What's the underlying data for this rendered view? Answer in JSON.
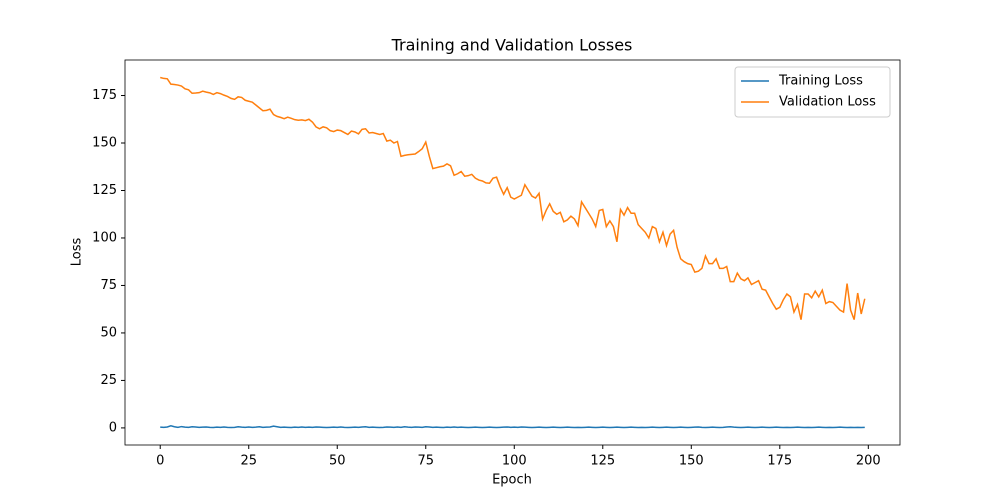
{
  "chart_data": {
    "type": "line",
    "title": "Training and Validation Losses",
    "x_label": "Epoch",
    "y_label": "Loss",
    "x": [
      0,
      1,
      2,
      3,
      4,
      5,
      6,
      7,
      8,
      9,
      10,
      11,
      12,
      13,
      14,
      15,
      16,
      17,
      18,
      19,
      20,
      21,
      22,
      23,
      24,
      25,
      26,
      27,
      28,
      29,
      30,
      31,
      32,
      33,
      34,
      35,
      36,
      37,
      38,
      39,
      40,
      41,
      42,
      43,
      44,
      45,
      46,
      47,
      48,
      49,
      50,
      51,
      52,
      53,
      54,
      55,
      56,
      57,
      58,
      59,
      60,
      61,
      62,
      63,
      64,
      65,
      66,
      67,
      68,
      69,
      70,
      71,
      72,
      73,
      74,
      75,
      76,
      77,
      78,
      79,
      80,
      81,
      82,
      83,
      84,
      85,
      86,
      87,
      88,
      89,
      90,
      91,
      92,
      93,
      94,
      95,
      96,
      97,
      98,
      99,
      100,
      101,
      102,
      103,
      104,
      105,
      106,
      107,
      108,
      109,
      110,
      111,
      112,
      113,
      114,
      115,
      116,
      117,
      118,
      119,
      120,
      121,
      122,
      123,
      124,
      125,
      126,
      127,
      128,
      129,
      130,
      131,
      132,
      133,
      134,
      135,
      136,
      137,
      138,
      139,
      140,
      141,
      142,
      143,
      144,
      145,
      146,
      147,
      148,
      149,
      150,
      151,
      152,
      153,
      154,
      155,
      156,
      157,
      158,
      159,
      160,
      161,
      162,
      163,
      164,
      165,
      166,
      167,
      168,
      169,
      170,
      171,
      172,
      173,
      174,
      175,
      176,
      177,
      178,
      179,
      180,
      181,
      182,
      183,
      184,
      185,
      186,
      187,
      188,
      189,
      190,
      191,
      192,
      193,
      194,
      195,
      196,
      197,
      198,
      199
    ],
    "series": [
      {
        "name": "Training Loss",
        "color": "#1f77b4",
        "values": [
          0.4,
          0.3,
          0.5,
          1.1,
          0.6,
          0.3,
          0.7,
          0.4,
          0.3,
          0.6,
          0.5,
          0.3,
          0.4,
          0.5,
          0.3,
          0.2,
          0.4,
          0.3,
          0.5,
          0.3,
          0.2,
          0.3,
          0.6,
          0.4,
          0.3,
          0.5,
          0.3,
          0.4,
          0.6,
          0.3,
          0.4,
          0.5,
          0.9,
          0.6,
          0.3,
          0.4,
          0.3,
          0.2,
          0.4,
          0.3,
          0.5,
          0.3,
          0.4,
          0.3,
          0.5,
          0.4,
          0.3,
          0.2,
          0.3,
          0.4,
          0.3,
          0.5,
          0.3,
          0.2,
          0.3,
          0.4,
          0.3,
          0.5,
          0.6,
          0.3,
          0.4,
          0.3,
          0.2,
          0.3,
          0.5,
          0.4,
          0.3,
          0.5,
          0.3,
          0.6,
          0.4,
          0.3,
          0.5,
          0.4,
          0.3,
          0.6,
          0.5,
          0.3,
          0.4,
          0.3,
          0.2,
          0.4,
          0.3,
          0.5,
          0.3,
          0.4,
          0.3,
          0.2,
          0.3,
          0.4,
          0.3,
          0.2,
          0.3,
          0.4,
          0.3,
          0.2,
          0.3,
          0.4,
          0.5,
          0.3,
          0.4,
          0.3,
          0.5,
          0.4,
          0.3,
          0.2,
          0.3,
          0.4,
          0.3,
          0.2,
          0.3,
          0.4,
          0.3,
          0.2,
          0.3,
          0.4,
          0.3,
          0.2,
          0.3,
          0.2,
          0.3,
          0.4,
          0.3,
          0.2,
          0.3,
          0.4,
          0.3,
          0.2,
          0.3,
          0.4,
          0.3,
          0.2,
          0.3,
          0.4,
          0.3,
          0.2,
          0.3,
          0.2,
          0.3,
          0.4,
          0.3,
          0.2,
          0.3,
          0.4,
          0.3,
          0.2,
          0.3,
          0.4,
          0.3,
          0.2,
          0.3,
          0.4,
          0.5,
          0.3,
          0.2,
          0.3,
          0.4,
          0.3,
          0.2,
          0.3,
          0.5,
          0.6,
          0.4,
          0.3,
          0.2,
          0.3,
          0.4,
          0.3,
          0.2,
          0.3,
          0.4,
          0.3,
          0.2,
          0.3,
          0.4,
          0.3,
          0.2,
          0.3,
          0.2,
          0.3,
          0.4,
          0.3,
          0.2,
          0.3,
          0.2,
          0.3,
          0.4,
          0.3,
          0.2,
          0.3,
          0.2,
          0.3,
          0.4,
          0.3,
          0.2,
          0.3,
          0.2,
          0.3,
          0.2,
          0.3
        ]
      },
      {
        "name": "Validation Loss",
        "color": "#ff7f0e",
        "values": [
          184.5,
          184,
          183.8,
          181,
          180.8,
          180.5,
          180,
          178.5,
          178,
          176.2,
          176.3,
          176.5,
          177.3,
          176.8,
          176.4,
          175.6,
          176.5,
          176,
          175.2,
          174.5,
          173.5,
          173,
          174.3,
          174,
          172.5,
          172,
          171.5,
          170,
          168.5,
          167,
          167.2,
          167.8,
          165,
          164,
          163.5,
          162.8,
          163.6,
          163,
          162.3,
          162,
          162.2,
          161.8,
          162.5,
          161,
          158.5,
          157.5,
          158.5,
          158,
          156.5,
          156,
          156.8,
          156.5,
          155.5,
          154.5,
          156.3,
          155.8,
          154.8,
          157.2,
          157.5,
          155.3,
          155.5,
          155,
          154.5,
          155,
          151,
          151.5,
          150,
          150.8,
          143,
          143.5,
          143.8,
          144,
          144.2,
          145.5,
          147,
          150.5,
          143,
          136.5,
          137,
          137.5,
          137.8,
          139,
          138,
          133,
          133.8,
          135,
          132.5,
          132.8,
          133.5,
          131.5,
          130.5,
          130,
          129,
          128.8,
          131.5,
          132,
          127,
          123,
          126.5,
          121.5,
          120.5,
          121.5,
          122.5,
          128,
          125,
          122,
          121,
          123.5,
          110,
          114.5,
          118,
          114,
          112.5,
          113.5,
          108.5,
          109.5,
          111.5,
          110,
          106.5,
          119,
          116,
          113,
          110,
          106,
          114.5,
          115,
          106,
          109,
          106,
          98,
          115,
          112,
          116,
          113,
          113,
          107,
          105,
          103,
          100,
          106,
          105,
          98,
          103,
          96,
          102,
          104,
          95,
          89,
          87.5,
          86.5,
          86,
          82,
          82.5,
          84,
          90.5,
          86.5,
          86.5,
          89,
          84,
          84,
          85,
          77,
          77,
          81.5,
          78.5,
          77.5,
          79,
          75.5,
          76.5,
          77.5,
          73,
          72.5,
          69,
          65.5,
          62.5,
          63.5,
          67.5,
          70.5,
          69,
          61,
          65,
          57,
          70.5,
          70.5,
          68.5,
          72,
          69,
          72.5,
          65.5,
          66.5,
          66,
          64,
          62,
          61,
          76,
          62,
          57,
          71,
          60,
          68
        ]
      }
    ],
    "xlim": [
      -9.95,
      208.95
    ],
    "ylim": [
      -9,
      193.7
    ],
    "xticks": [
      0,
      25,
      50,
      75,
      100,
      125,
      150,
      175,
      200
    ],
    "yticks": [
      0,
      25,
      50,
      75,
      100,
      125,
      150,
      175
    ],
    "legend": "upper right"
  }
}
